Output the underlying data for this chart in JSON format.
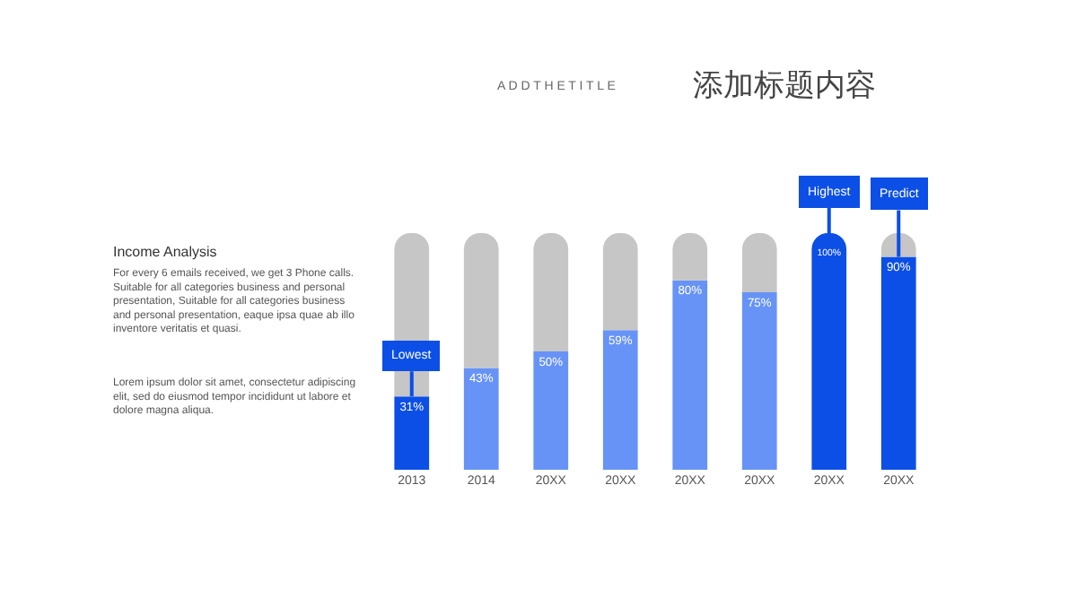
{
  "chart_data": {
    "type": "bar",
    "title": "添加标题内容",
    "subtitle": "A D D T H E T I T L E",
    "categories": [
      "2013",
      "2014",
      "20XX",
      "20XX",
      "20XX",
      "20XX",
      "20XX",
      "20XX"
    ],
    "series": [
      {
        "colors": [
          "#0c4fe6",
          "#6793f6",
          "#6793f6",
          "#6793f6",
          "#6793f6",
          "#6793f6",
          "#0c4fe6",
          "#0c4fe6"
        ],
        "values": [
          31,
          43,
          50,
          59,
          80,
          75,
          100,
          90
        ],
        "value_labels": [
          "31%",
          "43%",
          "50%",
          "59%",
          "80%",
          "75%",
          "100%",
          "90%"
        ]
      },
      {
        "color": "#c6c6c6",
        "values": [
          69,
          57,
          50,
          41,
          20,
          25,
          0,
          10
        ]
      }
    ],
    "stacked": true,
    "ylim": [
      0,
      100
    ],
    "tick_labels": "x",
    "legend": false,
    "annotations": [
      {
        "text": "Lowest",
        "x": "2013",
        "y": 31
      },
      {
        "text": "Highest",
        "y": 100
      },
      {
        "text": "Predict",
        "y": 90
      },
      "Income Analysis",
      "For every 6 emails received, we get 3 Phone calls. Suitable for all categories business and personal presentation, Suitable for all categories business and personal presentation, eaque ipsa quae ab illo inventore veritatis et quasi.",
      "Lorem ipsum dolor sit amet, consectetur adipiscing elit, sed do eiusmod tempor incididunt ut labore et dolore magna aliqua."
    ]
  }
}
